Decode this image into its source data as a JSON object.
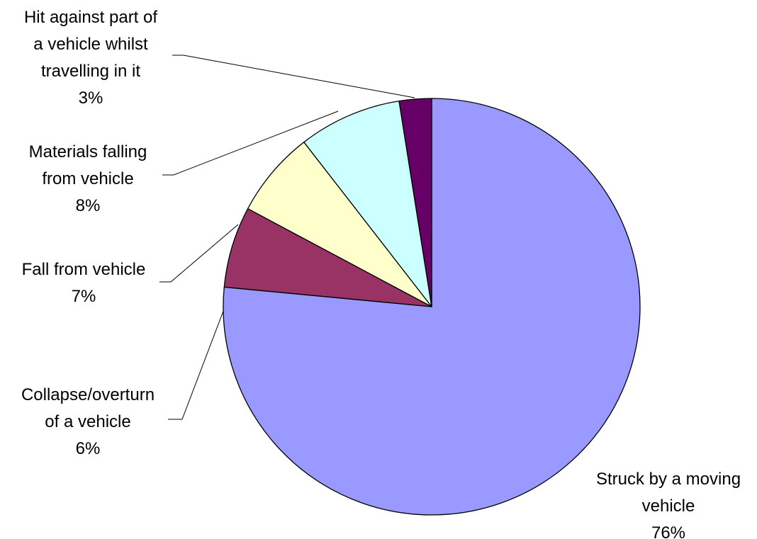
{
  "chart_data": {
    "type": "pie",
    "title": "",
    "start": "12 o'clock, clockwise",
    "slices": [
      {
        "label_lines": [
          "Struck by a moving",
          "vehicle"
        ],
        "pct_text": "76%",
        "value": 76.5,
        "color": "#9999FF"
      },
      {
        "label_lines": [
          "Collapse/overturn",
          "of a vehicle"
        ],
        "pct_text": "6%",
        "value": 6.3,
        "color": "#993366"
      },
      {
        "label_lines": [
          "Fall from vehicle"
        ],
        "pct_text": "7%",
        "value": 6.7,
        "color": "#FFFFCC"
      },
      {
        "label_lines": [
          "Materials falling",
          "from vehicle"
        ],
        "pct_text": "8%",
        "value": 8.0,
        "color": "#CCFFFF"
      },
      {
        "label_lines": [
          "Hit against part of",
          "a vehicle whilst",
          "travelling in it"
        ],
        "pct_text": "3%",
        "value": 2.5,
        "color": "#660066"
      }
    ],
    "legend": "none",
    "border_color": "#000000"
  }
}
